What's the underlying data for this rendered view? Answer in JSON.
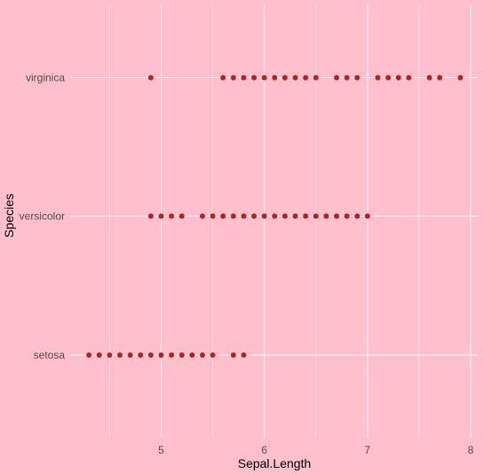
{
  "chart_data": {
    "type": "scatter",
    "title": "",
    "xlabel": "Sepal.Length",
    "ylabel": "Species",
    "xlim": [
      4.3,
      7.9
    ],
    "x_ticks": [
      5,
      6,
      7,
      8
    ],
    "categories": [
      "setosa",
      "versicolor",
      "virginica"
    ],
    "grid": true,
    "legend": "none",
    "point_color": "#b22222",
    "background_color": "#ffc0cb",
    "grid_color": "#ffffff",
    "series": [
      {
        "category": "setosa",
        "x": [
          4.3,
          4.4,
          4.5,
          4.6,
          4.7,
          4.8,
          4.9,
          5.0,
          5.1,
          5.2,
          5.3,
          5.4,
          5.5,
          5.7,
          5.8
        ]
      },
      {
        "category": "versicolor",
        "x": [
          4.9,
          5.0,
          5.1,
          5.2,
          5.4,
          5.5,
          5.6,
          5.7,
          5.8,
          5.9,
          6.0,
          6.1,
          6.2,
          6.3,
          6.4,
          6.5,
          6.6,
          6.7,
          6.8,
          6.9,
          7.0
        ]
      },
      {
        "category": "virginica",
        "x": [
          4.9,
          5.6,
          5.7,
          5.8,
          5.9,
          6.0,
          6.1,
          6.2,
          6.3,
          6.4,
          6.5,
          6.7,
          6.8,
          6.9,
          7.1,
          7.2,
          7.3,
          7.4,
          7.6,
          7.7,
          7.9
        ]
      }
    ]
  }
}
